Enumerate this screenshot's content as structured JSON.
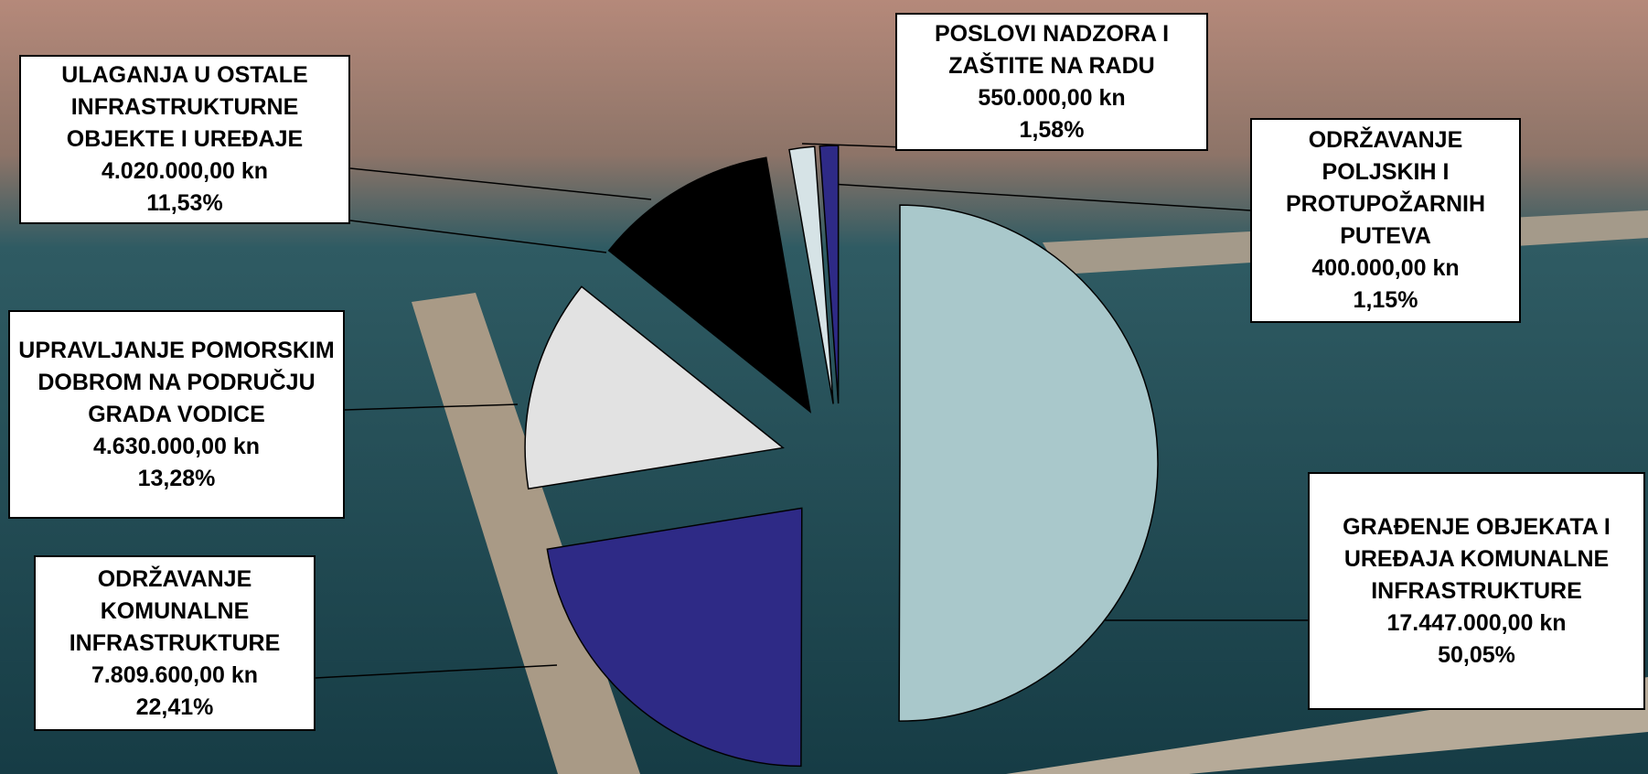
{
  "chart_data": {
    "type": "pie",
    "categories": [
      "GRAĐENJE OBJEKATA I UREĐAJA KOMUNALNE INFRASTRUKTURE",
      "ODRŽAVANJE KOMUNALNE INFRASTRUKTURE",
      "UPRAVLJANJE POMORSKIM DOBROM NA PODRUČJU GRADA VODICE",
      "ULAGANJA U OSTALE INFRASTRUKTURNE OBJEKTE I UREĐAJE",
      "POSLOVI NADZORA I ZAŠTITE NA RADU",
      "ODRŽAVANJE POLJSKIH I PROTUPOŽARNIH PUTEVA"
    ],
    "values": [
      50.05,
      22.41,
      13.28,
      11.53,
      1.58,
      1.15
    ],
    "value_labels": [
      "50,05%",
      "22,41%",
      "13,28%",
      "11,53%",
      "1,58%",
      "1,15%"
    ],
    "amounts": [
      17447000,
      7809600,
      4630000,
      4020000,
      550000,
      400000
    ],
    "amount_labels": [
      "17.447.000,00 kn",
      "7.809.600,00 kn",
      "4.630.000,00 kn",
      "4.020.000,00 kn",
      "550.000,00 kn",
      "400.000,00 kn"
    ],
    "colors": [
      "#a9c8cb",
      "#2e2a86",
      "#e2e2e2",
      "#000000",
      "#d6e3e6",
      "#2e2a86"
    ]
  }
}
